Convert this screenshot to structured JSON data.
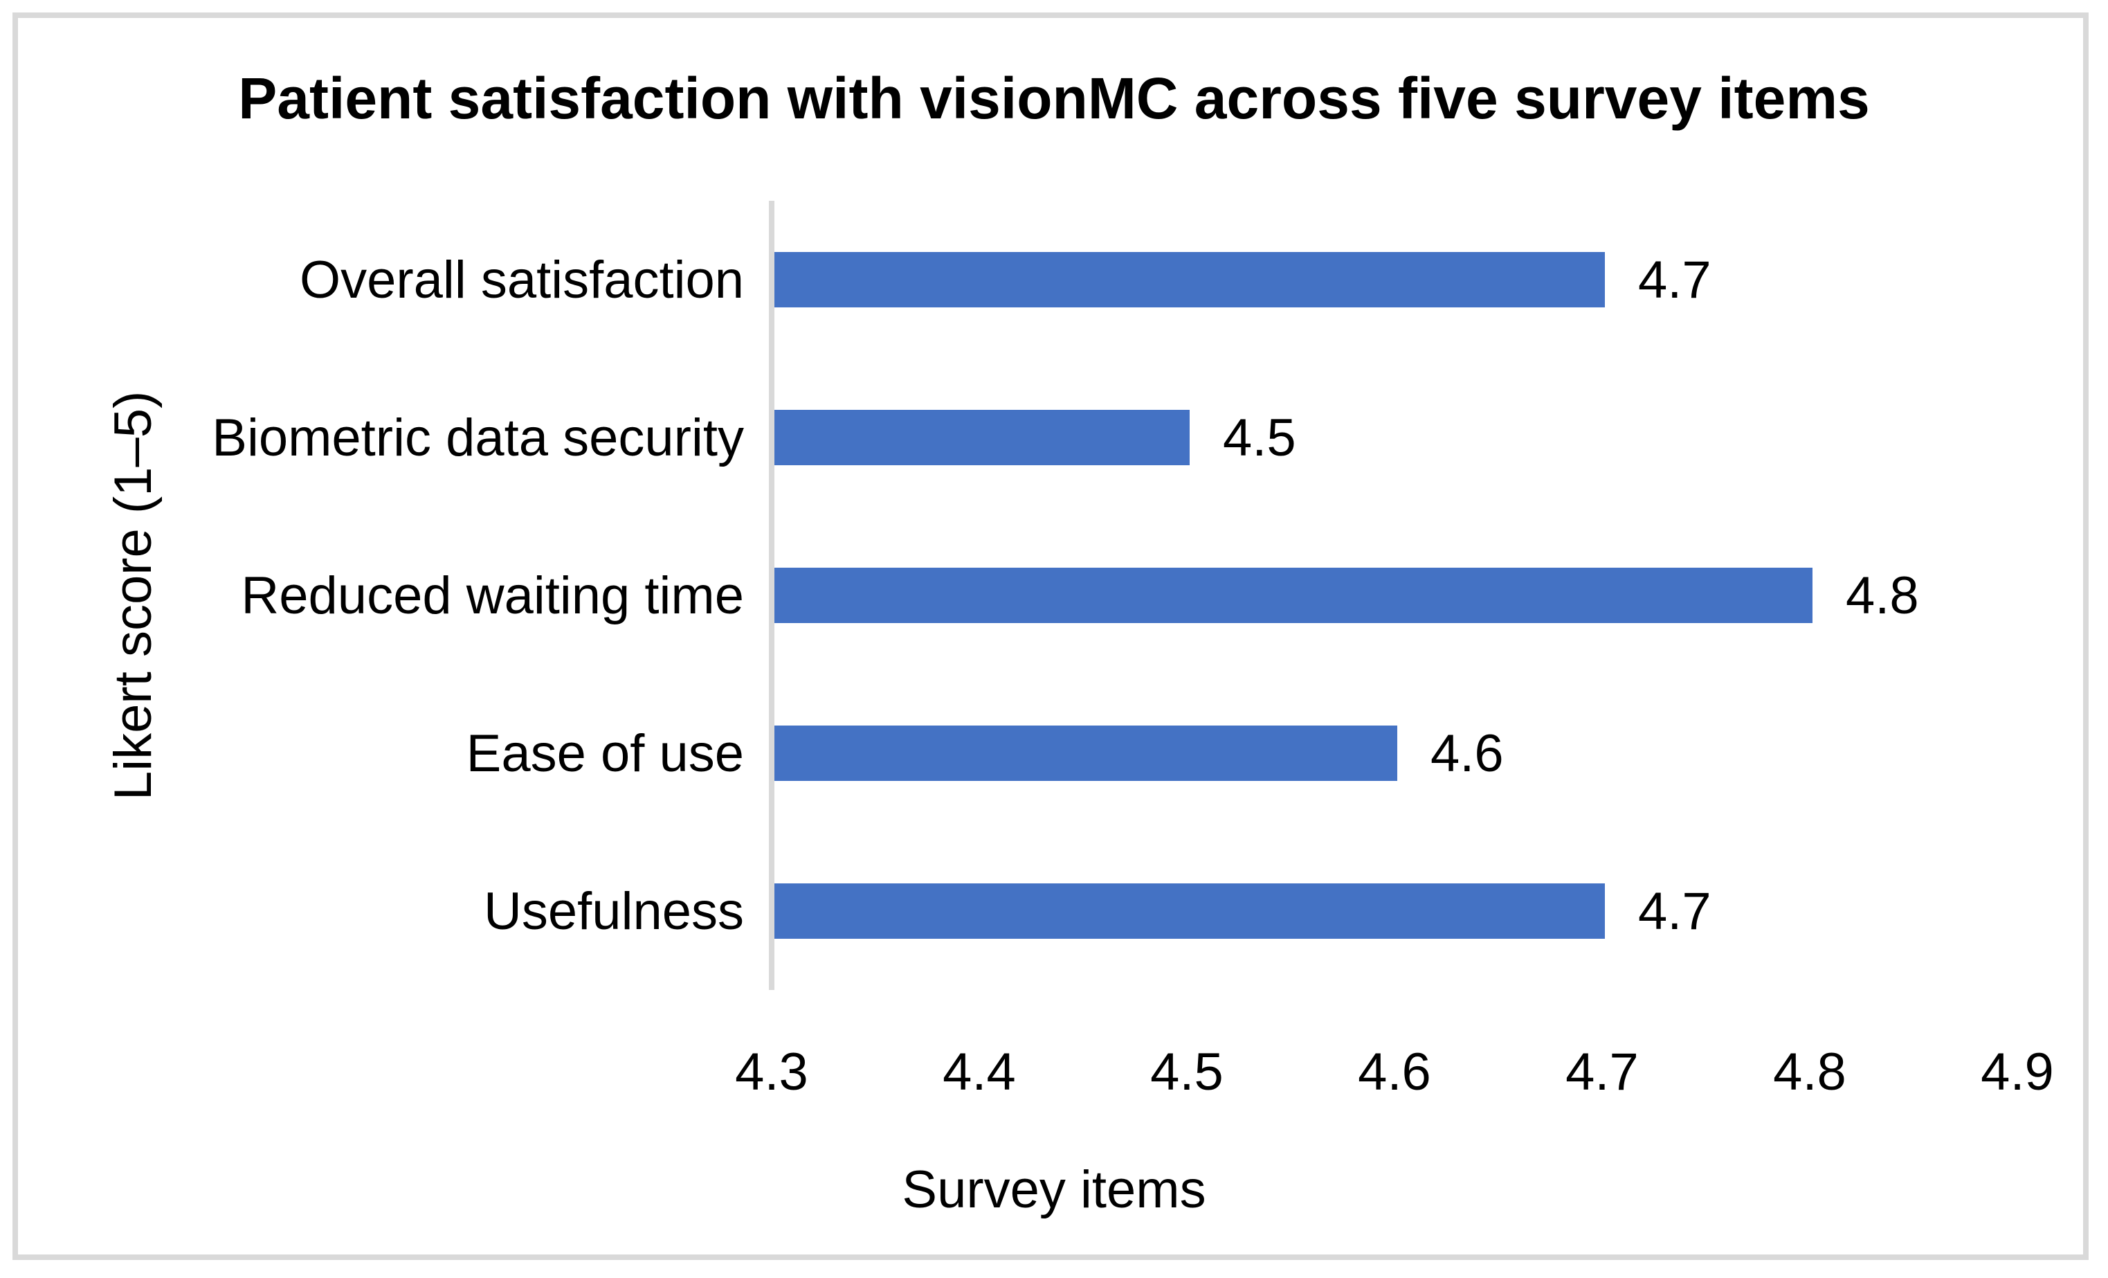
{
  "chart_data": {
    "type": "bar",
    "orientation": "horizontal",
    "title": "Patient satisfaction with visionMC across five survey items",
    "categories": [
      "Overall satisfaction",
      "Biometric data security",
      "Reduced waiting time",
      "Ease of use",
      "Usefulness"
    ],
    "values": [
      4.7,
      4.5,
      4.8,
      4.6,
      4.7
    ],
    "data_labels": [
      "4.7",
      "4.5",
      "4.8",
      "4.6",
      "4.7"
    ],
    "xlabel": "Survey items",
    "ylabel": "Likert score (1–5)",
    "xlim": [
      4.3,
      4.9
    ],
    "xticks": [
      "4.3",
      "4.4",
      "4.5",
      "4.6",
      "4.7",
      "4.8",
      "4.9"
    ],
    "grid": false,
    "legend": false,
    "colors": {
      "bar": "#4472C4",
      "axis_line": "#D9D9D9",
      "frame_border": "#D9D9D9",
      "text": "#000000",
      "background": "#FFFFFF"
    }
  }
}
